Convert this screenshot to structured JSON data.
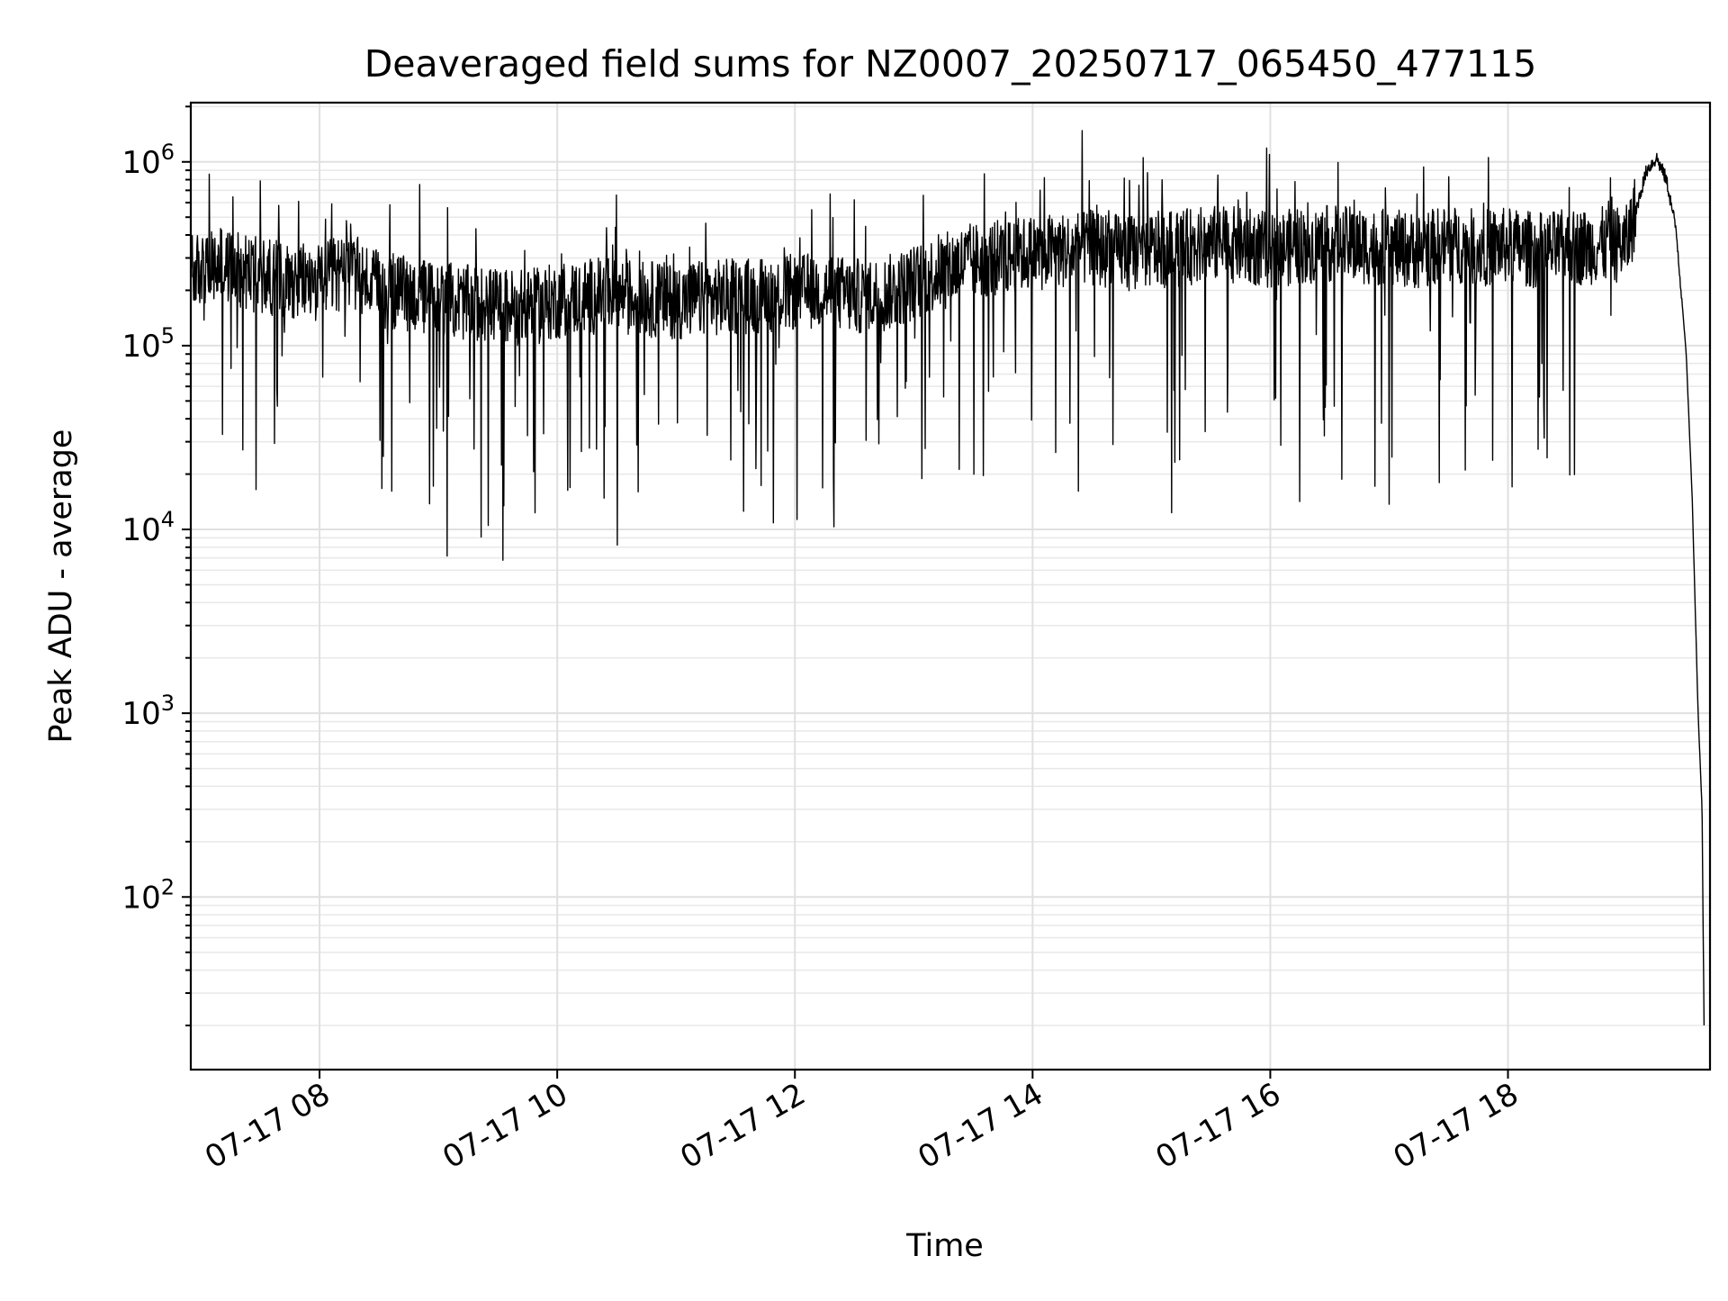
{
  "chart_data": {
    "type": "line",
    "title": "Deaveraged field sums for NZ0007_20250717_065450_477115",
    "xlabel": "Time",
    "ylabel": "Peak ADU - average",
    "x_scale": "time",
    "y_scale": "log",
    "xlim": [
      "2025-07-17 06:55",
      "2025-07-17 19:42"
    ],
    "ylim": [
      11.5,
      2100000
    ],
    "x_ticks": [
      {
        "value": "2025-07-17 08:00",
        "label": "07-17 08"
      },
      {
        "value": "2025-07-17 10:00",
        "label": "07-17 10"
      },
      {
        "value": "2025-07-17 12:00",
        "label": "07-17 12"
      },
      {
        "value": "2025-07-17 14:00",
        "label": "07-17 14"
      },
      {
        "value": "2025-07-17 16:00",
        "label": "07-17 16"
      },
      {
        "value": "2025-07-17 18:00",
        "label": "07-17 18"
      }
    ],
    "y_ticks": [
      {
        "value": 100,
        "base": "10",
        "exp": "2"
      },
      {
        "value": 1000,
        "base": "10",
        "exp": "3"
      },
      {
        "value": 10000,
        "base": "10",
        "exp": "4"
      },
      {
        "value": 100000,
        "base": "10",
        "exp": "5"
      },
      {
        "value": 1000000,
        "base": "10",
        "exp": "6"
      }
    ],
    "grid": true,
    "line_color": "#000000",
    "series": [
      {
        "name": "",
        "x": [
          "2025-07-17 06:55",
          "2025-07-17 07:15",
          "2025-07-17 07:30",
          "2025-07-17 07:45",
          "2025-07-17 08:00",
          "2025-07-17 08:15",
          "2025-07-17 08:30",
          "2025-07-17 08:45",
          "2025-07-17 09:00",
          "2025-07-17 09:15",
          "2025-07-17 09:30",
          "2025-07-17 09:45",
          "2025-07-17 10:00",
          "2025-07-17 10:15",
          "2025-07-17 10:30",
          "2025-07-17 10:45",
          "2025-07-17 11:00",
          "2025-07-17 11:15",
          "2025-07-17 11:30",
          "2025-07-17 11:45",
          "2025-07-17 12:00",
          "2025-07-17 12:15",
          "2025-07-17 12:30",
          "2025-07-17 12:45",
          "2025-07-17 13:00",
          "2025-07-17 13:15",
          "2025-07-17 13:30",
          "2025-07-17 13:45",
          "2025-07-17 14:00",
          "2025-07-17 14:15",
          "2025-07-17 14:30",
          "2025-07-17 14:45",
          "2025-07-17 15:00",
          "2025-07-17 15:15",
          "2025-07-17 15:30",
          "2025-07-17 15:45",
          "2025-07-17 16:00",
          "2025-07-17 16:15",
          "2025-07-17 16:30",
          "2025-07-17 16:45",
          "2025-07-17 17:00",
          "2025-07-17 17:15",
          "2025-07-17 17:30",
          "2025-07-17 17:45",
          "2025-07-17 18:00",
          "2025-07-17 18:15",
          "2025-07-17 18:30",
          "2025-07-17 18:45",
          "2025-07-17 19:00",
          "2025-07-17 19:10",
          "2025-07-17 19:15",
          "2025-07-17 19:20",
          "2025-07-17 19:25",
          "2025-07-17 19:30",
          "2025-07-17 19:33",
          "2025-07-17 19:36",
          "2025-07-17 19:38",
          "2025-07-17 19:39"
        ],
        "y": [
          250000,
          270000,
          240000,
          230000,
          220000,
          260000,
          200000,
          190000,
          180000,
          170000,
          165000,
          160000,
          175000,
          185000,
          190000,
          180000,
          175000,
          180000,
          185000,
          190000,
          195000,
          200000,
          185000,
          190000,
          220000,
          260000,
          290000,
          300000,
          320000,
          330000,
          340000,
          320000,
          330000,
          340000,
          360000,
          350000,
          330000,
          350000,
          360000,
          350000,
          340000,
          330000,
          360000,
          340000,
          350000,
          330000,
          340000,
          350000,
          360000,
          900000,
          1050000,
          800000,
          420000,
          90000,
          15000,
          1000,
          300,
          20
        ]
      }
    ]
  }
}
